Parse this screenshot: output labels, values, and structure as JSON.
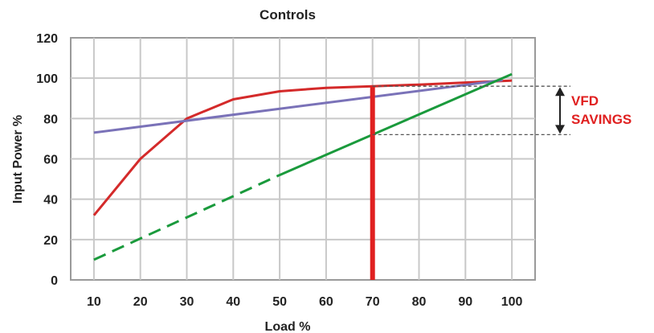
{
  "chart_data": {
    "type": "line",
    "title": "Controls",
    "xlabel": "Load %",
    "ylabel": "Input Power %",
    "xlim": [
      5,
      105
    ],
    "ylim": [
      0,
      120
    ],
    "x_ticks": [
      10,
      20,
      30,
      40,
      50,
      60,
      70,
      80,
      90,
      100
    ],
    "y_ticks": [
      0,
      20,
      40,
      60,
      80,
      100,
      120
    ],
    "grid": true,
    "series": [
      {
        "color": "#d42a2a",
        "style": "solid",
        "points": [
          [
            10,
            32
          ],
          [
            20,
            60
          ],
          [
            30,
            80
          ],
          [
            40,
            89.5
          ],
          [
            50,
            93.5
          ],
          [
            60,
            95.2
          ],
          [
            70,
            96
          ],
          [
            80,
            96.8
          ],
          [
            90,
            97.8
          ],
          [
            100,
            98.8
          ]
        ]
      },
      {
        "color": "#7a72b8",
        "style": "solid",
        "points": [
          [
            10,
            73
          ],
          [
            98,
            99
          ]
        ]
      },
      {
        "color": "#1a9a3c",
        "style": "dashed",
        "points": [
          [
            10,
            10
          ],
          [
            50,
            52
          ]
        ]
      },
      {
        "color": "#1a9a3c",
        "style": "solid",
        "points": [
          [
            50,
            52
          ],
          [
            100,
            102
          ]
        ]
      }
    ],
    "marker_line": {
      "x": 70,
      "color": "#e02020"
    },
    "annotation": {
      "text_lines": [
        "VFD",
        "SAVINGS"
      ],
      "upper_y": 96,
      "lower_y": 72,
      "color": "#e02020"
    }
  }
}
